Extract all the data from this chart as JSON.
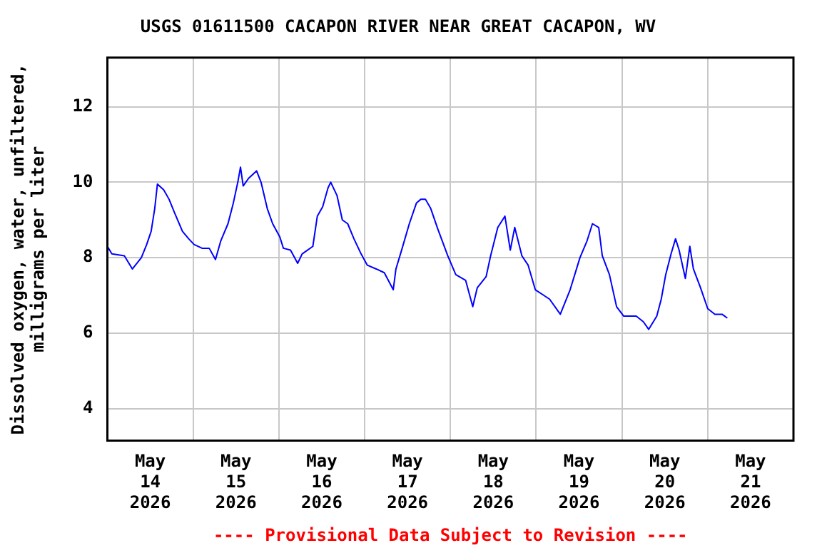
{
  "chart_data": {
    "type": "line",
    "title": "USGS 01611500 CACAPON RIVER NEAR GREAT CACAPON, WV",
    "ylabel": "Dissolved oxygen, water, unfiltered,\nmilligrams per liter",
    "annotations": [
      "---- Provisional Data Subject to Revision ----"
    ],
    "x": [
      "2026-05-14T00:00",
      "2026-05-14T01:15",
      "2026-05-14T04:45",
      "2026-05-14T07:00",
      "2026-05-14T09:30",
      "2026-05-14T11:00",
      "2026-05-14T12:15",
      "2026-05-14T13:15",
      "2026-05-14T14:00",
      "2026-05-14T15:45",
      "2026-05-14T17:15",
      "2026-05-14T18:45",
      "2026-05-14T21:00",
      "2026-05-14T22:45",
      "2026-05-15T00:15",
      "2026-05-15T02:30",
      "2026-05-15T04:30",
      "2026-05-15T06:15",
      "2026-05-15T07:45",
      "2026-05-15T09:45",
      "2026-05-15T11:15",
      "2026-05-15T12:30",
      "2026-05-15T13:15",
      "2026-05-15T14:00",
      "2026-05-15T15:30",
      "2026-05-15T17:45",
      "2026-05-15T19:00",
      "2026-05-15T20:45",
      "2026-05-15T22:15",
      "2026-05-16T00:15",
      "2026-05-16T01:15",
      "2026-05-16T03:15",
      "2026-05-16T05:15",
      "2026-05-16T06:30",
      "2026-05-16T09:30",
      "2026-05-16T10:45",
      "2026-05-16T12:15",
      "2026-05-16T13:45",
      "2026-05-16T14:30",
      "2026-05-16T16:15",
      "2026-05-16T17:45",
      "2026-05-16T19:15",
      "2026-05-16T21:00",
      "2026-05-16T23:00",
      "2026-05-17T00:45",
      "2026-05-17T03:15",
      "2026-05-17T05:30",
      "2026-05-17T08:00",
      "2026-05-17T08:45",
      "2026-05-17T10:30",
      "2026-05-17T12:30",
      "2026-05-17T14:30",
      "2026-05-17T15:45",
      "2026-05-17T17:00",
      "2026-05-17T18:30",
      "2026-05-17T20:30",
      "2026-05-17T23:15",
      "2026-05-18T01:30",
      "2026-05-18T04:15",
      "2026-05-18T06:15",
      "2026-05-18T07:30",
      "2026-05-18T10:00",
      "2026-05-18T11:15",
      "2026-05-18T13:15",
      "2026-05-18T15:15",
      "2026-05-18T16:45",
      "2026-05-18T18:00",
      "2026-05-18T20:00",
      "2026-05-18T21:45",
      "2026-05-18T23:45",
      "2026-05-19T03:45",
      "2026-05-19T06:45",
      "2026-05-19T09:30",
      "2026-05-19T12:15",
      "2026-05-19T14:15",
      "2026-05-19T15:45",
      "2026-05-19T17:30",
      "2026-05-19T18:30",
      "2026-05-19T20:30",
      "2026-05-19T22:30",
      "2026-05-20T00:30",
      "2026-05-20T04:00",
      "2026-05-20T06:00",
      "2026-05-20T07:30",
      "2026-05-20T09:45",
      "2026-05-20T11:00",
      "2026-05-20T12:15",
      "2026-05-20T13:45",
      "2026-05-20T15:00",
      "2026-05-20T16:00",
      "2026-05-20T17:45",
      "2026-05-20T19:00",
      "2026-05-20T20:00",
      "2026-05-20T22:00",
      "2026-05-21T00:00",
      "2026-05-21T02:00",
      "2026-05-21T04:00",
      "2026-05-21T05:30"
    ],
    "series": [
      {
        "color": "#0000ff",
        "values": [
          8.3,
          8.1,
          8.05,
          7.7,
          8.0,
          8.35,
          8.7,
          9.3,
          9.95,
          9.8,
          9.55,
          9.2,
          8.7,
          8.5,
          8.35,
          8.25,
          8.25,
          7.95,
          8.45,
          8.9,
          9.45,
          10.0,
          10.4,
          9.9,
          10.1,
          10.3,
          10.0,
          9.3,
          8.9,
          8.55,
          8.25,
          8.2,
          7.85,
          8.1,
          8.3,
          9.1,
          9.35,
          9.85,
          10.0,
          9.65,
          9.0,
          8.9,
          8.5,
          8.1,
          7.8,
          7.7,
          7.6,
          7.15,
          7.7,
          8.25,
          8.9,
          9.45,
          9.55,
          9.55,
          9.3,
          8.75,
          8.05,
          7.55,
          7.4,
          6.7,
          7.2,
          7.5,
          8.05,
          8.8,
          9.1,
          8.2,
          8.8,
          8.05,
          7.8,
          7.15,
          6.9,
          6.5,
          7.15,
          8.0,
          8.45,
          8.9,
          8.8,
          8.05,
          7.55,
          6.7,
          6.45,
          6.45,
          6.3,
          6.1,
          6.45,
          6.9,
          7.55,
          8.1,
          8.5,
          8.2,
          7.45,
          8.3,
          7.7,
          7.2,
          6.65,
          6.5,
          6.5,
          6.4
        ]
      }
    ],
    "xlim": [
      "2026-05-14T00:00",
      "2026-05-22T00:00"
    ],
    "xticks": [
      {
        "value": "2026-05-14T12:00",
        "label": "May 14 2026"
      },
      {
        "value": "2026-05-15T00:00",
        "label": null
      },
      {
        "value": "2026-05-15T12:00",
        "label": "May 15 2026"
      },
      {
        "value": "2026-05-16T00:00",
        "label": null
      },
      {
        "value": "2026-05-16T12:00",
        "label": "May 16 2026"
      },
      {
        "value": "2026-05-17T00:00",
        "label": null
      },
      {
        "value": "2026-05-17T12:00",
        "label": "May 17 2026"
      },
      {
        "value": "2026-05-18T00:00",
        "label": null
      },
      {
        "value": "2026-05-18T12:00",
        "label": "May 18 2026"
      },
      {
        "value": "2026-05-19T00:00",
        "label": null
      },
      {
        "value": "2026-05-19T12:00",
        "label": "May 19 2026"
      },
      {
        "value": "2026-05-20T00:00",
        "label": null
      },
      {
        "value": "2026-05-20T12:00",
        "label": "May 20 2026"
      },
      {
        "value": "2026-05-21T00:00",
        "label": null
      },
      {
        "value": "2026-05-21T12:00",
        "label": "May 21 2026"
      }
    ],
    "ylim": [
      3.15,
      13.3
    ],
    "yticks": [
      4,
      6,
      8,
      10,
      12
    ],
    "grid": true,
    "legend": false,
    "marker": "none",
    "line_style": "solid"
  }
}
